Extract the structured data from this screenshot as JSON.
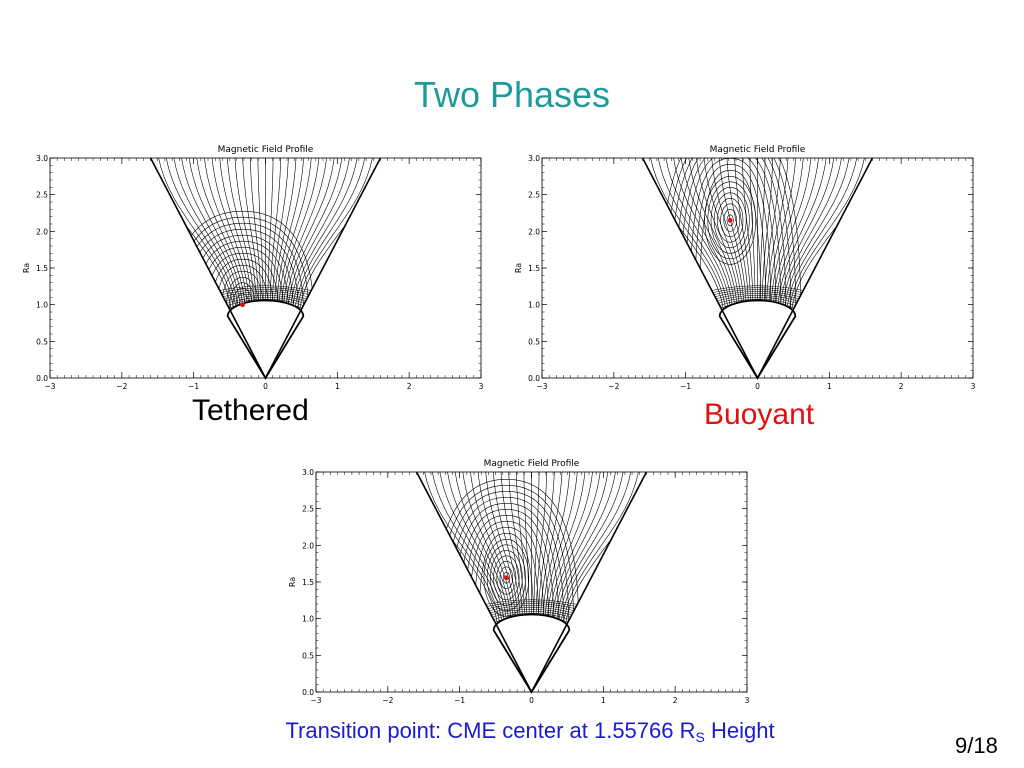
{
  "slide": {
    "title": "Two Phases",
    "page_number": "9/18",
    "transition": {
      "prefix": "Transition point: CME center at 1.55766 R",
      "subscript": "S",
      "suffix": " Height"
    }
  },
  "colors": {
    "title": "#1f9a9a",
    "transition_text": "#1a1ad4",
    "buoyant_label": "#e01010",
    "marker": "#e01010"
  },
  "panels": [
    {
      "id": "tethered",
      "plot_title": "Magnetic Field Profile",
      "ylabel": "Ra",
      "caption": "Tethered",
      "x_ticks": [
        "−3",
        "−2",
        "−1",
        "0",
        "1",
        "2",
        "3"
      ],
      "y_ticks": [
        "0.0",
        "0.5",
        "1.0",
        "1.5",
        "2.0",
        "2.5",
        "3.0"
      ],
      "xlim": [
        -3,
        3
      ],
      "ylim": [
        0,
        3
      ],
      "cme_center": {
        "x": -0.32,
        "y": 1.0
      },
      "inner_loops": 5,
      "outer_loops": 11
    },
    {
      "id": "buoyant",
      "plot_title": "Magnetic Field Profile",
      "ylabel": "Ra",
      "caption": "Buoyant",
      "x_ticks": [
        "−3",
        "−2",
        "−1",
        "0",
        "1",
        "2",
        "3"
      ],
      "y_ticks": [
        "0.0",
        "0.5",
        "1.0",
        "1.5",
        "2.0",
        "2.5",
        "3.0"
      ],
      "xlim": [
        -3,
        3
      ],
      "ylim": [
        0,
        3
      ],
      "cme_center": {
        "x": -0.38,
        "y": 2.15
      },
      "inner_loops": 8,
      "outer_loops": 9
    },
    {
      "id": "transition",
      "plot_title": "Magnetic Field Profile",
      "ylabel": "Ra",
      "caption": "",
      "x_ticks": [
        "−3",
        "−2",
        "−1",
        "0",
        "1",
        "2",
        "3"
      ],
      "y_ticks": [
        "0.0",
        "0.5",
        "1.0",
        "1.5",
        "2.0",
        "2.5",
        "3.0"
      ],
      "xlim": [
        -3,
        3
      ],
      "ylim": [
        0,
        3
      ],
      "cme_center": {
        "x": -0.35,
        "y": 1.55766
      },
      "inner_loops": 7,
      "outer_loops": 10
    }
  ]
}
